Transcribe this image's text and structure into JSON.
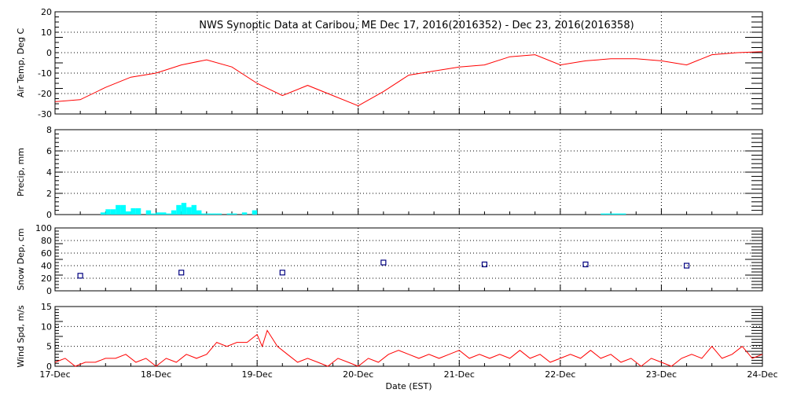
{
  "chart_data": {
    "title": "NWS Synoptic Data at Caribou, ME   Dec 17, 2016(2016352) - Dec 23, 2016(2016358)",
    "xlabel": "Date (EST)",
    "x_ticks": [
      "17-Dec",
      "18-Dec",
      "19-Dec",
      "20-Dec",
      "21-Dec",
      "22-Dec",
      "23-Dec",
      "24-Dec"
    ],
    "x_range_days": [
      0,
      7
    ],
    "grid": true,
    "panels": [
      {
        "type": "line",
        "ylabel": "Air Temp, Deg C",
        "ylim": [
          -30,
          20
        ],
        "y_ticks": [
          20,
          10,
          0,
          -10,
          -20,
          -30
        ],
        "color": "#ff0000",
        "x_days": [
          0,
          0.25,
          0.5,
          0.75,
          1,
          1.25,
          1.5,
          1.75,
          2,
          2.25,
          2.5,
          2.75,
          3,
          3.25,
          3.5,
          3.75,
          4,
          4.25,
          4.5,
          4.75,
          5,
          5.25,
          5.5,
          5.75,
          6,
          6.25,
          6.5,
          6.75,
          7
        ],
        "values": [
          -24,
          -23,
          -17,
          -12,
          -10,
          -6,
          -3.5,
          -7,
          -15,
          -21,
          -16,
          -21,
          -26,
          -19,
          -11,
          -9,
          -7,
          -6,
          -2,
          -1,
          -6,
          -4,
          -3,
          -3,
          -4,
          -6,
          -1,
          0,
          0.5
        ]
      },
      {
        "type": "bar",
        "ylabel": "Precip, mm",
        "ylim": [
          0,
          8
        ],
        "y_ticks": [
          8,
          6,
          4,
          2,
          0
        ],
        "color": "#00ffff",
        "x_days": [
          0.45,
          0.5,
          0.55,
          0.6,
          0.65,
          0.7,
          0.75,
          0.8,
          0.9,
          0.95,
          1.0,
          1.05,
          1.1,
          1.15,
          1.2,
          1.25,
          1.3,
          1.35,
          1.4,
          1.45,
          1.5,
          1.55,
          1.6,
          1.7,
          1.75,
          1.85,
          1.95,
          5.4,
          5.45,
          5.5,
          5.55,
          5.6
        ],
        "values": [
          0.2,
          0.5,
          0.5,
          0.9,
          0.9,
          0.3,
          0.6,
          0.6,
          0.4,
          0.1,
          0.2,
          0.2,
          0.1,
          0.4,
          0.9,
          1.1,
          0.7,
          0.9,
          0.4,
          0.1,
          0.1,
          0.1,
          0.1,
          0.1,
          0.1,
          0.2,
          0.4,
          0.1,
          0.1,
          0.1,
          0.1,
          0.1
        ]
      },
      {
        "type": "scatter",
        "ylabel": "Snow Dep, cm",
        "ylim": [
          0,
          100
        ],
        "y_ticks": [
          100,
          80,
          60,
          40,
          20,
          0
        ],
        "color": "#000080",
        "x_days": [
          0.25,
          1.25,
          2.25,
          3.25,
          4.25,
          5.25,
          6.25
        ],
        "values": [
          24,
          29,
          29,
          45,
          42,
          42,
          40
        ]
      },
      {
        "type": "line",
        "ylabel": "Wind Spd, m/s",
        "ylim": [
          0,
          15
        ],
        "y_ticks": [
          15,
          10,
          5,
          0
        ],
        "color": "#ff0000",
        "x_days": [
          0,
          0.1,
          0.2,
          0.3,
          0.4,
          0.5,
          0.6,
          0.7,
          0.8,
          0.9,
          1.0,
          1.1,
          1.2,
          1.3,
          1.4,
          1.5,
          1.6,
          1.7,
          1.8,
          1.9,
          2.0,
          2.05,
          2.1,
          2.2,
          2.3,
          2.4,
          2.5,
          2.6,
          2.7,
          2.8,
          2.9,
          3.0,
          3.1,
          3.2,
          3.3,
          3.4,
          3.5,
          3.6,
          3.7,
          3.8,
          3.9,
          4.0,
          4.1,
          4.2,
          4.3,
          4.4,
          4.5,
          4.6,
          4.7,
          4.8,
          4.9,
          5.0,
          5.1,
          5.2,
          5.3,
          5.4,
          5.5,
          5.6,
          5.7,
          5.8,
          5.9,
          6.0,
          6.1,
          6.2,
          6.3,
          6.4,
          6.5,
          6.6,
          6.7,
          6.8,
          6.9,
          7.0
        ],
        "values": [
          1,
          2,
          0,
          1,
          1,
          2,
          2,
          3,
          1,
          2,
          0,
          2,
          1,
          3,
          2,
          3,
          6,
          5,
          6,
          6,
          8,
          5,
          9,
          5,
          3,
          1,
          2,
          1,
          0,
          2,
          1,
          0,
          2,
          1,
          3,
          4,
          3,
          2,
          3,
          2,
          3,
          4,
          2,
          3,
          2,
          3,
          2,
          4,
          2,
          3,
          1,
          2,
          3,
          2,
          4,
          2,
          3,
          1,
          2,
          0,
          2,
          1,
          0,
          2,
          3,
          2,
          5,
          2,
          3,
          5,
          2,
          3
        ]
      }
    ]
  }
}
